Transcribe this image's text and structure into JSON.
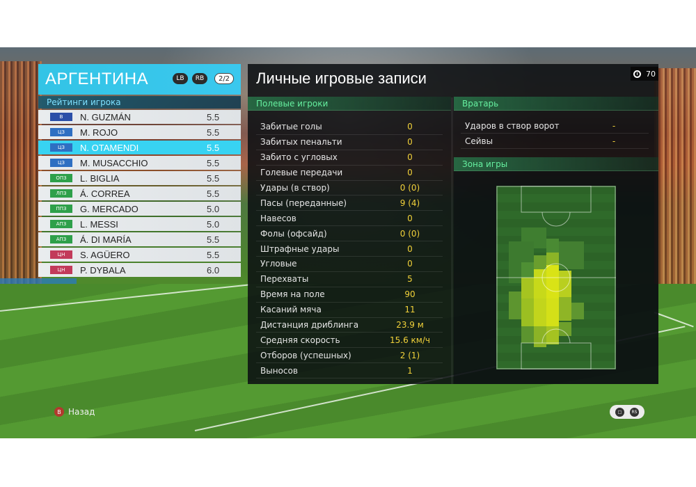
{
  "colors": {
    "accent": "#33c4e6",
    "value_yellow": "#f2d23a",
    "section_green": "#66f0a0"
  },
  "team": {
    "name": "АРГЕНТИНА",
    "buttons": [
      "LB",
      "RB"
    ],
    "page": "2/2",
    "ratings_label": "Рейтинги игрока",
    "players": [
      {
        "pos": "В",
        "pos_color": "#2b4fa8",
        "name": "N. GUZMÁN",
        "rating": "5.5",
        "selected": false
      },
      {
        "pos": "ЦЗ",
        "pos_color": "#2e6fc2",
        "name": "M. ROJO",
        "rating": "5.5",
        "selected": false
      },
      {
        "pos": "ЦЗ",
        "pos_color": "#2e6fc2",
        "name": "N. OTAMENDI",
        "rating": "5.5",
        "selected": true
      },
      {
        "pos": "ЦЗ",
        "pos_color": "#2e6fc2",
        "name": "M. MUSACCHIO",
        "rating": "5.5",
        "selected": false
      },
      {
        "pos": "ОПЗ",
        "pos_color": "#2ea04a",
        "name": "L. BIGLIA",
        "rating": "5.5",
        "selected": false
      },
      {
        "pos": "ЛПЗ",
        "pos_color": "#2ea04a",
        "name": "Á. CORREA",
        "rating": "5.5",
        "selected": false
      },
      {
        "pos": "ППЗ",
        "pos_color": "#2ea04a",
        "name": "G. MERCADO",
        "rating": "5.0",
        "selected": false
      },
      {
        "pos": "АПЗ",
        "pos_color": "#2ea04a",
        "name": "L. MESSI",
        "rating": "5.0",
        "selected": false
      },
      {
        "pos": "АПЗ",
        "pos_color": "#2ea04a",
        "name": "Á. DI MARÍA",
        "rating": "5.5",
        "selected": false
      },
      {
        "pos": "ЦН",
        "pos_color": "#c23a5a",
        "name": "S. AGÜERO",
        "rating": "5.5",
        "selected": false
      },
      {
        "pos": "ЦН",
        "pos_color": "#c23a5a",
        "name": "P. DYBALA",
        "rating": "6.0",
        "selected": false
      }
    ]
  },
  "main": {
    "title": "Личные игровые записи",
    "timer": "70",
    "field_header": "Полевые игроки",
    "gk_header": "Вратарь",
    "zone_header": "Зона игры",
    "field_stats": [
      {
        "label": "Забитые голы",
        "value": "0"
      },
      {
        "label": "Забитых пенальти",
        "value": "0"
      },
      {
        "label": "Забито с угловых",
        "value": "0"
      },
      {
        "label": "Голевые передачи",
        "value": "0"
      },
      {
        "label": "Удары (в створ)",
        "value": "0 (0)"
      },
      {
        "label": "Пасы (переданные)",
        "value": "9 (4)"
      },
      {
        "label": "Навесов",
        "value": "0"
      },
      {
        "label": "Фолы (офсайд)",
        "value": "0 (0)"
      },
      {
        "label": "Штрафные удары",
        "value": "0"
      },
      {
        "label": "Угловые",
        "value": "0"
      },
      {
        "label": "Перехваты",
        "value": "5"
      },
      {
        "label": "Время на поле",
        "value": "90"
      },
      {
        "label": "Касаний мяча",
        "value": "11"
      },
      {
        "label": "Дистанция дриблинга",
        "value": "23.9 м"
      },
      {
        "label": "Средняя скорость",
        "value": "15.6 км/ч"
      },
      {
        "label": "Отборов (успешных)",
        "value": "2 (1)"
      },
      {
        "label": "Выносов",
        "value": "1"
      }
    ],
    "gk_stats": [
      {
        "label": "Ударов в створ ворот",
        "value": "-"
      },
      {
        "label": "Сейвы",
        "value": "-"
      }
    ]
  },
  "footer": {
    "back_label": "Назад",
    "back_key": "B",
    "right_icons": [
      "chat-icon",
      "rs-stick-icon"
    ]
  }
}
